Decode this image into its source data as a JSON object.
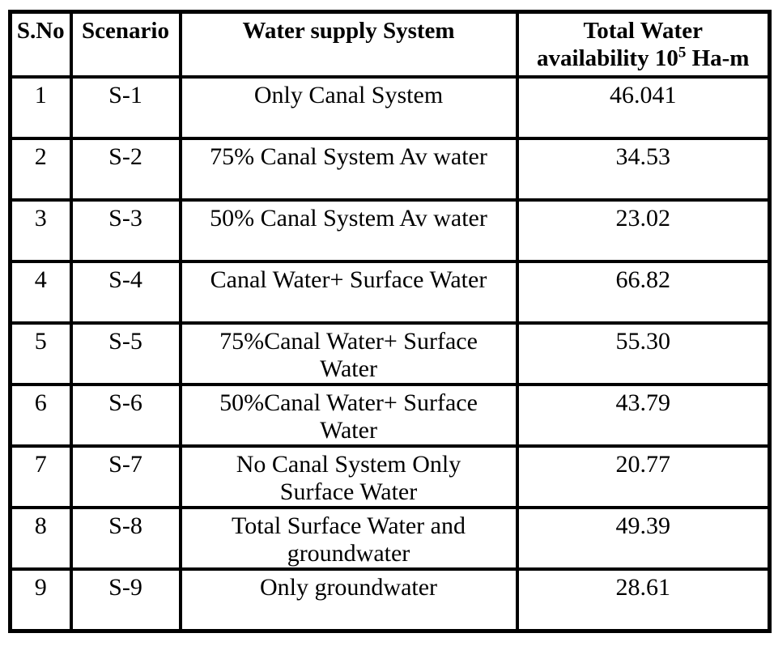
{
  "table": {
    "headers": {
      "sno": "S.No",
      "scenario": "Scenario",
      "system": "Water supply System",
      "availability_prefix": "Total Water\navailability 10",
      "availability_exponent": "5",
      "availability_suffix": " Ha-m"
    },
    "rows": [
      {
        "sno": "1",
        "scenario": "S-1",
        "system": "Only Canal System",
        "availability": "46.041"
      },
      {
        "sno": "2",
        "scenario": "S-2",
        "system": "75% Canal System Av water",
        "availability": "34.53"
      },
      {
        "sno": "3",
        "scenario": "S-3",
        "system": "50% Canal System Av water",
        "availability": "23.02"
      },
      {
        "sno": "4",
        "scenario": "S-4",
        "system": "Canal Water+ Surface Water",
        "availability": "66.82"
      },
      {
        "sno": "5",
        "scenario": "S-5",
        "system": "75%Canal Water+ Surface\nWater",
        "availability": "55.30"
      },
      {
        "sno": "6",
        "scenario": "S-6",
        "system": "50%Canal Water+ Surface\nWater",
        "availability": "43.79"
      },
      {
        "sno": "7",
        "scenario": "S-7",
        "system": "No Canal System Only\nSurface Water",
        "availability": "20.77"
      },
      {
        "sno": "8",
        "scenario": "S-8",
        "system": "Total Surface Water and\ngroundwater",
        "availability": "49.39"
      },
      {
        "sno": "9",
        "scenario": "S-9",
        "system": "Only groundwater",
        "availability": "28.61"
      }
    ]
  }
}
